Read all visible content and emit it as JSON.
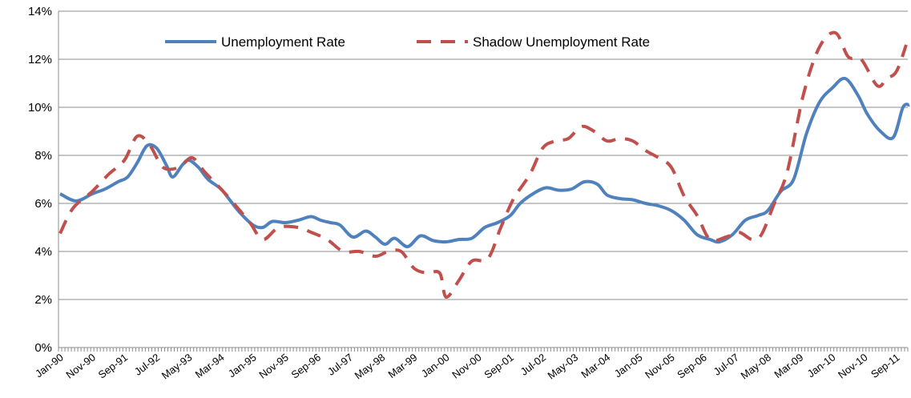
{
  "chart_data": {
    "type": "line",
    "title": "",
    "xlabel": "",
    "ylabel": "",
    "ylim": [
      0,
      14
    ],
    "y_ticks": [
      "0%",
      "2%",
      "4%",
      "6%",
      "8%",
      "10%",
      "12%",
      "14%"
    ],
    "x_range": [
      "1990-01",
      "2011-12"
    ],
    "x_tick_labels": [
      "Jan-90",
      "Nov-90",
      "Sep-91",
      "Jul-92",
      "May-93",
      "Mar-94",
      "Jan-95",
      "Nov-95",
      "Sep-96",
      "Jul-97",
      "May-98",
      "Mar-99",
      "Jan-00",
      "Nov-00",
      "Sep-01",
      "Jul-02",
      "May-03",
      "Mar-04",
      "Jan-05",
      "Nov-05",
      "Sep-06",
      "Jul-07",
      "May-08",
      "Mar-09",
      "Jan-10",
      "Nov-10",
      "Sep-11"
    ],
    "grid": "horizontal",
    "legend": "top",
    "series": [
      {
        "name": "Unemployment Rate",
        "color": "#4f81bd",
        "style": "solid",
        "points": [
          [
            "1990-01",
            6.4
          ],
          [
            "1990-06",
            6.1
          ],
          [
            "1990-11",
            6.4
          ],
          [
            "1991-03",
            6.6
          ],
          [
            "1991-07",
            6.9
          ],
          [
            "1991-10",
            7.1
          ],
          [
            "1992-01",
            7.7
          ],
          [
            "1992-04",
            8.4
          ],
          [
            "1992-07",
            8.3
          ],
          [
            "1992-10",
            7.6
          ],
          [
            "1992-12",
            7.1
          ],
          [
            "1993-03",
            7.6
          ],
          [
            "1993-05",
            7.8
          ],
          [
            "1993-08",
            7.5
          ],
          [
            "1993-11",
            7.0
          ],
          [
            "1994-03",
            6.6
          ],
          [
            "1994-06",
            6.1
          ],
          [
            "1994-09",
            5.6
          ],
          [
            "1995-01",
            5.1
          ],
          [
            "1995-04",
            5.0
          ],
          [
            "1995-07",
            5.25
          ],
          [
            "1995-11",
            5.2
          ],
          [
            "1996-03",
            5.3
          ],
          [
            "1996-07",
            5.45
          ],
          [
            "1996-10",
            5.3
          ],
          [
            "1997-01",
            5.2
          ],
          [
            "1997-04",
            5.1
          ],
          [
            "1997-08",
            4.6
          ],
          [
            "1997-12",
            4.85
          ],
          [
            "1998-03",
            4.6
          ],
          [
            "1998-06",
            4.3
          ],
          [
            "1998-09",
            4.55
          ],
          [
            "1999-01",
            4.2
          ],
          [
            "1999-05",
            4.65
          ],
          [
            "1999-09",
            4.45
          ],
          [
            "2000-01",
            4.4
          ],
          [
            "2000-05",
            4.5
          ],
          [
            "2000-09",
            4.55
          ],
          [
            "2001-01",
            5.0
          ],
          [
            "2001-05",
            5.2
          ],
          [
            "2001-09",
            5.5
          ],
          [
            "2001-12",
            6.0
          ],
          [
            "2002-04",
            6.4
          ],
          [
            "2002-08",
            6.65
          ],
          [
            "2002-12",
            6.55
          ],
          [
            "2003-04",
            6.6
          ],
          [
            "2003-08",
            6.9
          ],
          [
            "2003-12",
            6.8
          ],
          [
            "2004-03",
            6.35
          ],
          [
            "2004-07",
            6.2
          ],
          [
            "2004-11",
            6.15
          ],
          [
            "2005-03",
            6.0
          ],
          [
            "2005-07",
            5.9
          ],
          [
            "2005-11",
            5.7
          ],
          [
            "2006-03",
            5.3
          ],
          [
            "2006-07",
            4.7
          ],
          [
            "2006-11",
            4.5
          ],
          [
            "2007-02",
            4.4
          ],
          [
            "2007-06",
            4.7
          ],
          [
            "2007-10",
            5.3
          ],
          [
            "2008-02",
            5.5
          ],
          [
            "2008-05",
            5.7
          ],
          [
            "2008-09",
            6.5
          ],
          [
            "2009-01",
            7.0
          ],
          [
            "2009-05",
            8.9
          ],
          [
            "2009-09",
            10.2
          ],
          [
            "2010-01",
            10.8
          ],
          [
            "2010-05",
            11.2
          ],
          [
            "2010-09",
            10.5
          ],
          [
            "2010-12",
            9.7
          ],
          [
            "2011-04",
            9.0
          ],
          [
            "2011-08",
            8.75
          ],
          [
            "2011-11",
            10.0
          ],
          [
            "2012-01",
            10.1
          ]
        ]
      },
      {
        "name": "Shadow Unemployment Rate",
        "color": "#c0504d",
        "style": "dashed",
        "points": [
          [
            "1990-01",
            4.75
          ],
          [
            "1990-05",
            5.8
          ],
          [
            "1990-11",
            6.5
          ],
          [
            "1991-04",
            7.2
          ],
          [
            "1991-09",
            7.8
          ],
          [
            "1992-01",
            8.8
          ],
          [
            "1992-05",
            8.4
          ],
          [
            "1992-09",
            7.5
          ],
          [
            "1993-02",
            7.5
          ],
          [
            "1993-06",
            7.9
          ],
          [
            "1993-10",
            7.3
          ],
          [
            "1994-03",
            6.6
          ],
          [
            "1994-07",
            6.0
          ],
          [
            "1994-12",
            5.2
          ],
          [
            "1995-04",
            4.5
          ],
          [
            "1995-09",
            5.0
          ],
          [
            "1996-03",
            5.0
          ],
          [
            "1996-07",
            4.8
          ],
          [
            "1996-12",
            4.5
          ],
          [
            "1997-05",
            4.0
          ],
          [
            "1997-10",
            4.0
          ],
          [
            "1998-03",
            3.8
          ],
          [
            "1998-07",
            4.0
          ],
          [
            "1998-11",
            4.0
          ],
          [
            "1999-03",
            3.3
          ],
          [
            "1999-07",
            3.1
          ],
          [
            "1999-11",
            3.1
          ],
          [
            "2000-01",
            2.1
          ],
          [
            "2000-05",
            2.8
          ],
          [
            "2000-09",
            3.6
          ],
          [
            "2001-02",
            3.7
          ],
          [
            "2001-06",
            5.0
          ],
          [
            "2001-10",
            6.2
          ],
          [
            "2002-03",
            7.2
          ],
          [
            "2002-07",
            8.3
          ],
          [
            "2002-11",
            8.6
          ],
          [
            "2003-03",
            8.7
          ],
          [
            "2003-07",
            9.2
          ],
          [
            "2003-11",
            9.0
          ],
          [
            "2004-03",
            8.6
          ],
          [
            "2004-07",
            8.7
          ],
          [
            "2004-11",
            8.6
          ],
          [
            "2005-03",
            8.2
          ],
          [
            "2005-07",
            7.9
          ],
          [
            "2005-11",
            7.5
          ],
          [
            "2006-03",
            6.3
          ],
          [
            "2006-07",
            5.5
          ],
          [
            "2006-11",
            4.5
          ],
          [
            "2007-04",
            4.6
          ],
          [
            "2007-08",
            4.8
          ],
          [
            "2007-12",
            4.5
          ],
          [
            "2008-03",
            4.7
          ],
          [
            "2008-07",
            6.0
          ],
          [
            "2008-11",
            7.3
          ],
          [
            "2009-04",
            10.5
          ],
          [
            "2009-09",
            12.5
          ],
          [
            "2010-02",
            13.1
          ],
          [
            "2010-06",
            12.1
          ],
          [
            "2010-10",
            12.0
          ],
          [
            "2011-03",
            10.9
          ],
          [
            "2011-06",
            11.2
          ],
          [
            "2011-09",
            11.5
          ],
          [
            "2011-12",
            12.6
          ]
        ]
      }
    ]
  }
}
